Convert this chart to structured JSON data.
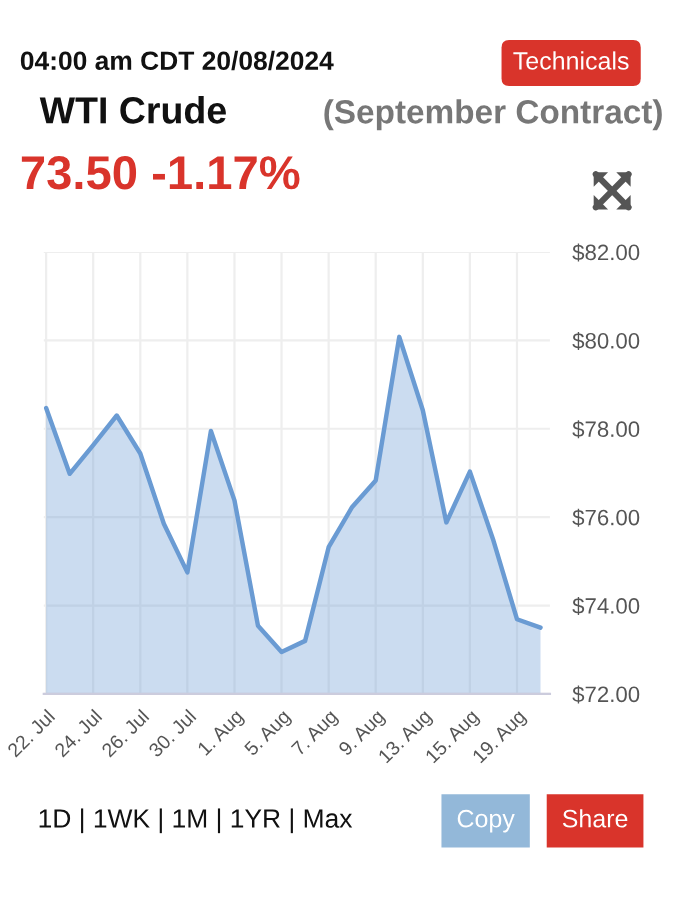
{
  "chart_data": {
    "type": "area",
    "title": "WTI Crude",
    "subtitle": "(September Contract)",
    "annotations": [
      "04:00 am CDT 20/08/2024",
      "73.50 -1.17%",
      "Technicals",
      "1D | 1WK | 1M | 1YR | Max",
      "Copy",
      "Share"
    ],
    "categories": [
      "22. Jul",
      null,
      "24. Jul",
      null,
      "26. Jul",
      null,
      "30. Jul",
      null,
      "1. Aug",
      null,
      "5. Aug",
      null,
      "7. Aug",
      null,
      "9. Aug",
      null,
      "13. Aug",
      null,
      "15. Aug",
      null,
      "19. Aug",
      null
    ],
    "series": [
      {
        "color": "#6a9bd3",
        "values": [
          78.47,
          76.98,
          77.63,
          78.3,
          77.44,
          75.85,
          74.75,
          77.95,
          76.38,
          73.54,
          72.95,
          73.2,
          75.32,
          76.23,
          76.83,
          80.08,
          78.42,
          75.88,
          77.03,
          75.47,
          73.69,
          73.5
        ]
      }
    ],
    "ylim": [
      72,
      82
    ],
    "yticks": [
      {
        "value": 72,
        "label": "$72.00"
      },
      {
        "value": 74,
        "label": "$74.00"
      },
      {
        "value": 76,
        "label": "$76.00"
      },
      {
        "value": 78,
        "label": "$78.00"
      },
      {
        "value": 80,
        "label": "$80.00"
      },
      {
        "value": 82,
        "label": "$82.00"
      }
    ],
    "grid": true,
    "legend": false
  }
}
